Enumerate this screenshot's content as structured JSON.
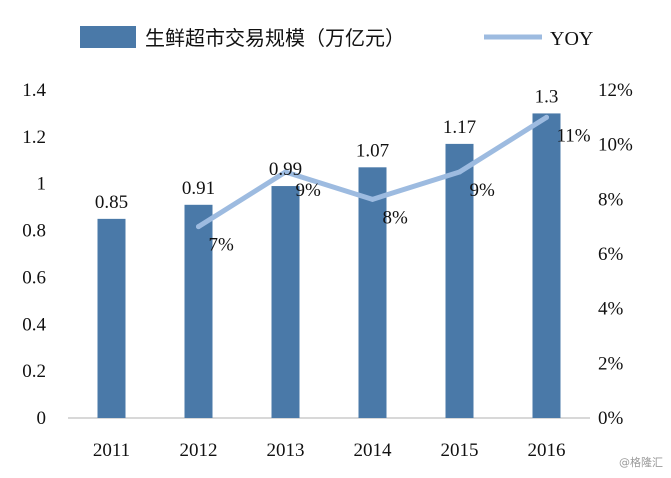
{
  "chart_data": {
    "type": "bar",
    "categories": [
      "2011",
      "2012",
      "2013",
      "2014",
      "2015",
      "2016"
    ],
    "series": [
      {
        "name": "生鲜超市交易规模（万亿元）",
        "type": "bar",
        "axis": "left",
        "values": [
          0.85,
          0.91,
          0.99,
          1.07,
          1.17,
          1.3
        ],
        "labels": [
          "0.85",
          "0.91",
          "0.99",
          "1.07",
          "1.17",
          "1.3"
        ],
        "color": "#4a79a8"
      },
      {
        "name": "YOY",
        "type": "line",
        "axis": "right",
        "values": [
          null,
          7,
          9,
          8,
          9,
          11
        ],
        "labels": [
          "",
          "7%",
          "9%",
          "8%",
          "9%",
          "11%"
        ],
        "color": "#9dbbe0"
      }
    ],
    "y_left": {
      "min": 0,
      "max": 1.4,
      "ticks": [
        "0",
        "0.2",
        "0.4",
        "0.6",
        "0.8",
        "1",
        "1.2",
        "1.4"
      ]
    },
    "y_right": {
      "min": 0,
      "max": 12,
      "ticks": [
        "0%",
        "2%",
        "4%",
        "6%",
        "8%",
        "10%",
        "12%"
      ]
    },
    "legend": "top",
    "grid": false
  },
  "watermark": "@格隆汇"
}
